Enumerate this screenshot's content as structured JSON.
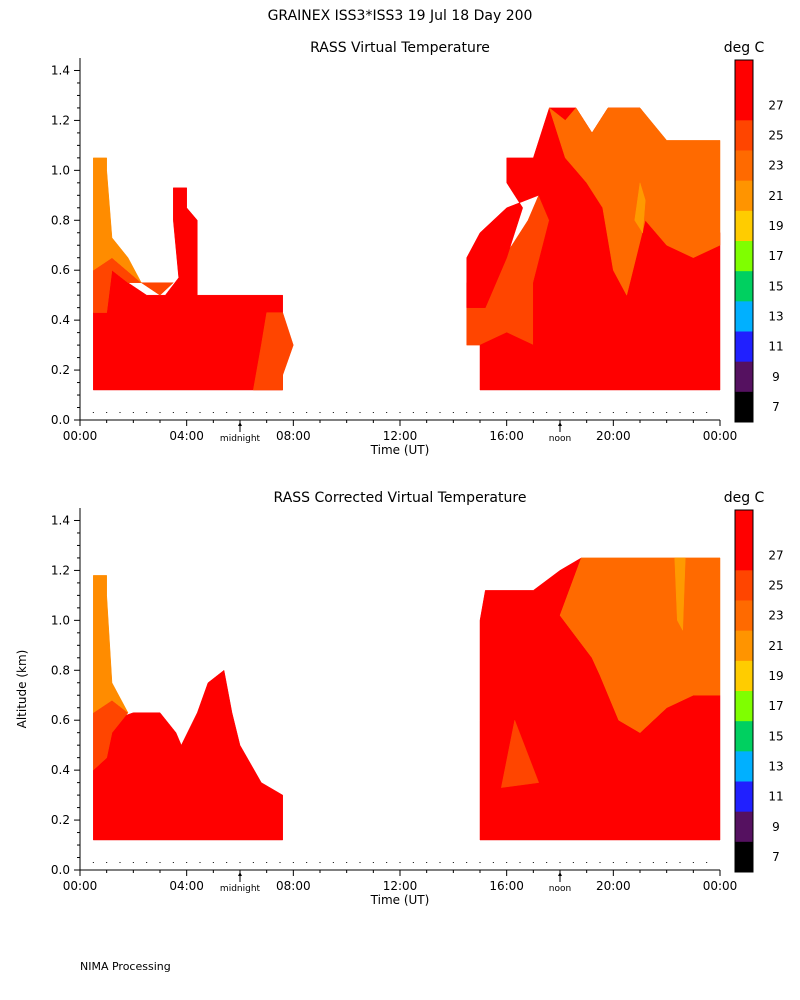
{
  "header": {
    "title": "GRAINEX ISS3*ISS3  19 Jul 18 Day 200"
  },
  "footer": {
    "text": "NIMA Processing"
  },
  "colorbar": {
    "unit": "deg C",
    "labels": [
      "27",
      "25",
      "23",
      "21",
      "19",
      "17",
      "15",
      "13",
      "11",
      "9",
      "7"
    ],
    "colors": [
      "#ff0000",
      "#ff0000",
      "#ff4500",
      "#ff6a00",
      "#ff9400",
      "#ffcc00",
      "#7fff00",
      "#00d060",
      "#00b0ff",
      "#2020ff",
      "#551160",
      "#000000"
    ]
  },
  "chart_data": [
    {
      "type": "heatmap",
      "title": "RASS Virtual Temperature",
      "xlabel": "Time (UT)",
      "ylabel": "",
      "x_ticks": [
        "00:00",
        "04:00",
        "08:00",
        "12:00",
        "16:00",
        "20:00",
        "00:00"
      ],
      "y_ticks": [
        "0.0",
        "0.2",
        "0.4",
        "0.6",
        "0.8",
        "1.0",
        "1.2",
        "1.4"
      ],
      "xlim_hours": [
        0,
        24
      ],
      "ylim_km": [
        0,
        1.45
      ],
      "markers": [
        {
          "label": "midnight",
          "hour": 6
        },
        {
          "label": "noon",
          "hour": 18
        }
      ],
      "regions": [
        {
          "color": "#ff0000",
          "points": [
            [
              0.5,
              0.12
            ],
            [
              0.5,
              0.43
            ],
            [
              1.0,
              0.43
            ],
            [
              1.2,
              0.6
            ],
            [
              1.8,
              0.55
            ],
            [
              2.5,
              0.5
            ],
            [
              3.2,
              0.5
            ],
            [
              3.7,
              0.57
            ],
            [
              3.5,
              0.8
            ],
            [
              3.5,
              0.93
            ],
            [
              4.0,
              0.93
            ],
            [
              4.0,
              0.85
            ],
            [
              4.4,
              0.8
            ],
            [
              4.4,
              0.5
            ],
            [
              7.6,
              0.5
            ],
            [
              7.6,
              0.12
            ]
          ]
        },
        {
          "color": "#ff4500",
          "points": [
            [
              0.5,
              0.43
            ],
            [
              0.5,
              0.6
            ],
            [
              1.2,
              0.65
            ],
            [
              2.3,
              0.55
            ],
            [
              3.0,
              0.5
            ],
            [
              3.5,
              0.55
            ],
            [
              1.8,
              0.55
            ],
            [
              1.2,
              0.6
            ],
            [
              1.0,
              0.43
            ]
          ]
        },
        {
          "color": "#ff4500",
          "points": [
            [
              6.5,
              0.12
            ],
            [
              6.8,
              0.3
            ],
            [
              7.0,
              0.43
            ],
            [
              7.6,
              0.43
            ],
            [
              8.0,
              0.3
            ],
            [
              7.6,
              0.18
            ],
            [
              7.6,
              0.12
            ]
          ]
        },
        {
          "color": "#ff8c00",
          "points": [
            [
              0.5,
              0.6
            ],
            [
              0.5,
              1.05
            ],
            [
              1.0,
              1.05
            ],
            [
              1.0,
              1.0
            ],
            [
              1.2,
              0.73
            ],
            [
              1.8,
              0.65
            ],
            [
              2.3,
              0.55
            ],
            [
              1.2,
              0.65
            ]
          ]
        },
        {
          "color": "#ff4500",
          "points": [
            [
              14.5,
              0.3
            ],
            [
              14.5,
              0.55
            ],
            [
              15.5,
              0.6
            ],
            [
              16.2,
              0.7
            ],
            [
              16.8,
              0.8
            ],
            [
              17.2,
              0.9
            ],
            [
              17.6,
              0.8
            ],
            [
              17.0,
              0.55
            ],
            [
              17.0,
              0.3
            ]
          ]
        },
        {
          "color": "#ff0000",
          "points": [
            [
              15.0,
              0.12
            ],
            [
              15.0,
              0.3
            ],
            [
              16.0,
              0.35
            ],
            [
              17.0,
              0.3
            ],
            [
              17.0,
              0.55
            ],
            [
              17.6,
              0.8
            ],
            [
              17.2,
              0.9
            ],
            [
              16.0,
              0.85
            ],
            [
              15.0,
              0.75
            ],
            [
              14.5,
              0.65
            ],
            [
              14.5,
              0.45
            ],
            [
              15.2,
              0.45
            ],
            [
              16.0,
              0.65
            ],
            [
              16.6,
              0.85
            ],
            [
              16.0,
              0.95
            ],
            [
              16.0,
              1.05
            ],
            [
              17.0,
              1.05
            ],
            [
              17.6,
              1.25
            ],
            [
              18.6,
              1.25
            ],
            [
              19.2,
              1.15
            ],
            [
              19.8,
              1.25
            ],
            [
              21.0,
              1.25
            ],
            [
              22.0,
              1.1
            ],
            [
              23.0,
              0.9
            ],
            [
              24.0,
              0.75
            ],
            [
              24.0,
              0.12
            ]
          ]
        },
        {
          "color": "#ff6a00",
          "points": [
            [
              17.6,
              1.25
            ],
            [
              18.2,
              1.2
            ],
            [
              18.6,
              1.25
            ],
            [
              19.2,
              1.15
            ],
            [
              19.8,
              1.25
            ],
            [
              21.0,
              1.25
            ],
            [
              22.0,
              1.12
            ],
            [
              24.0,
              1.12
            ],
            [
              24.0,
              0.7
            ],
            [
              23.0,
              0.65
            ],
            [
              22.0,
              0.7
            ],
            [
              21.2,
              0.8
            ],
            [
              20.5,
              0.5
            ],
            [
              20.0,
              0.6
            ],
            [
              19.6,
              0.85
            ],
            [
              19.0,
              0.95
            ],
            [
              18.6,
              1.0
            ],
            [
              18.2,
              1.05
            ]
          ]
        },
        {
          "color": "#ff9a00",
          "points": [
            [
              20.8,
              0.8
            ],
            [
              21.0,
              0.95
            ],
            [
              21.2,
              0.88
            ],
            [
              21.1,
              0.75
            ]
          ]
        }
      ]
    },
    {
      "type": "heatmap",
      "title": "RASS Corrected Virtual Temperature",
      "xlabel": "Time (UT)",
      "ylabel": "Altitude (km)",
      "x_ticks": [
        "00:00",
        "04:00",
        "08:00",
        "12:00",
        "16:00",
        "20:00",
        "00:00"
      ],
      "y_ticks": [
        "0.0",
        "0.2",
        "0.4",
        "0.6",
        "0.8",
        "1.0",
        "1.2",
        "1.4"
      ],
      "xlim_hours": [
        0,
        24
      ],
      "ylim_km": [
        0,
        1.45
      ],
      "markers": [
        {
          "label": "midnight",
          "hour": 6
        },
        {
          "label": "noon",
          "hour": 18
        }
      ],
      "regions": [
        {
          "color": "#ff0000",
          "points": [
            [
              0.5,
              0.12
            ],
            [
              0.5,
              0.4
            ],
            [
              1.0,
              0.45
            ],
            [
              1.2,
              0.6
            ],
            [
              2.0,
              0.63
            ],
            [
              3.0,
              0.63
            ],
            [
              3.6,
              0.55
            ],
            [
              3.8,
              0.5
            ],
            [
              4.4,
              0.63
            ],
            [
              4.8,
              0.75
            ],
            [
              5.4,
              0.8
            ],
            [
              5.7,
              0.63
            ],
            [
              6.0,
              0.5
            ],
            [
              6.8,
              0.35
            ],
            [
              7.6,
              0.3
            ],
            [
              7.6,
              0.12
            ]
          ]
        },
        {
          "color": "#ff4500",
          "points": [
            [
              0.5,
              0.4
            ],
            [
              0.5,
              0.63
            ],
            [
              1.2,
              0.68
            ],
            [
              1.8,
              0.63
            ],
            [
              1.2,
              0.55
            ],
            [
              1.0,
              0.45
            ]
          ]
        },
        {
          "color": "#ff8c00",
          "points": [
            [
              0.5,
              0.63
            ],
            [
              0.5,
              1.18
            ],
            [
              1.0,
              1.18
            ],
            [
              1.0,
              1.1
            ],
            [
              1.2,
              0.75
            ],
            [
              1.8,
              0.63
            ],
            [
              1.2,
              0.68
            ]
          ]
        },
        {
          "color": "#ff0000",
          "points": [
            [
              15.0,
              0.12
            ],
            [
              15.0,
              0.6
            ],
            [
              15.0,
              1.0
            ],
            [
              15.2,
              1.12
            ],
            [
              17.0,
              1.12
            ],
            [
              18.0,
              1.2
            ],
            [
              18.8,
              1.25
            ],
            [
              18.0,
              1.02
            ],
            [
              19.2,
              0.85
            ],
            [
              19.5,
              0.78
            ],
            [
              20.2,
              0.6
            ],
            [
              21.0,
              0.55
            ],
            [
              22.0,
              0.65
            ],
            [
              23.0,
              0.7
            ],
            [
              24.0,
              0.7
            ],
            [
              24.0,
              0.12
            ]
          ]
        },
        {
          "color": "#ff6a00",
          "points": [
            [
              18.8,
              1.25
            ],
            [
              24.0,
              1.25
            ],
            [
              24.0,
              0.7
            ],
            [
              23.0,
              0.7
            ],
            [
              22.0,
              0.65
            ],
            [
              21.0,
              0.55
            ],
            [
              20.2,
              0.6
            ],
            [
              19.5,
              0.78
            ],
            [
              19.2,
              0.85
            ],
            [
              18.0,
              1.02
            ]
          ]
        },
        {
          "color": "#ff4500",
          "points": [
            [
              15.8,
              0.33
            ],
            [
              16.3,
              0.6
            ],
            [
              17.2,
              0.35
            ]
          ]
        },
        {
          "color": "#ff9a00",
          "points": [
            [
              22.3,
              1.25
            ],
            [
              22.7,
              1.25
            ],
            [
              22.6,
              0.96
            ],
            [
              22.4,
              1.0
            ]
          ]
        }
      ]
    }
  ]
}
